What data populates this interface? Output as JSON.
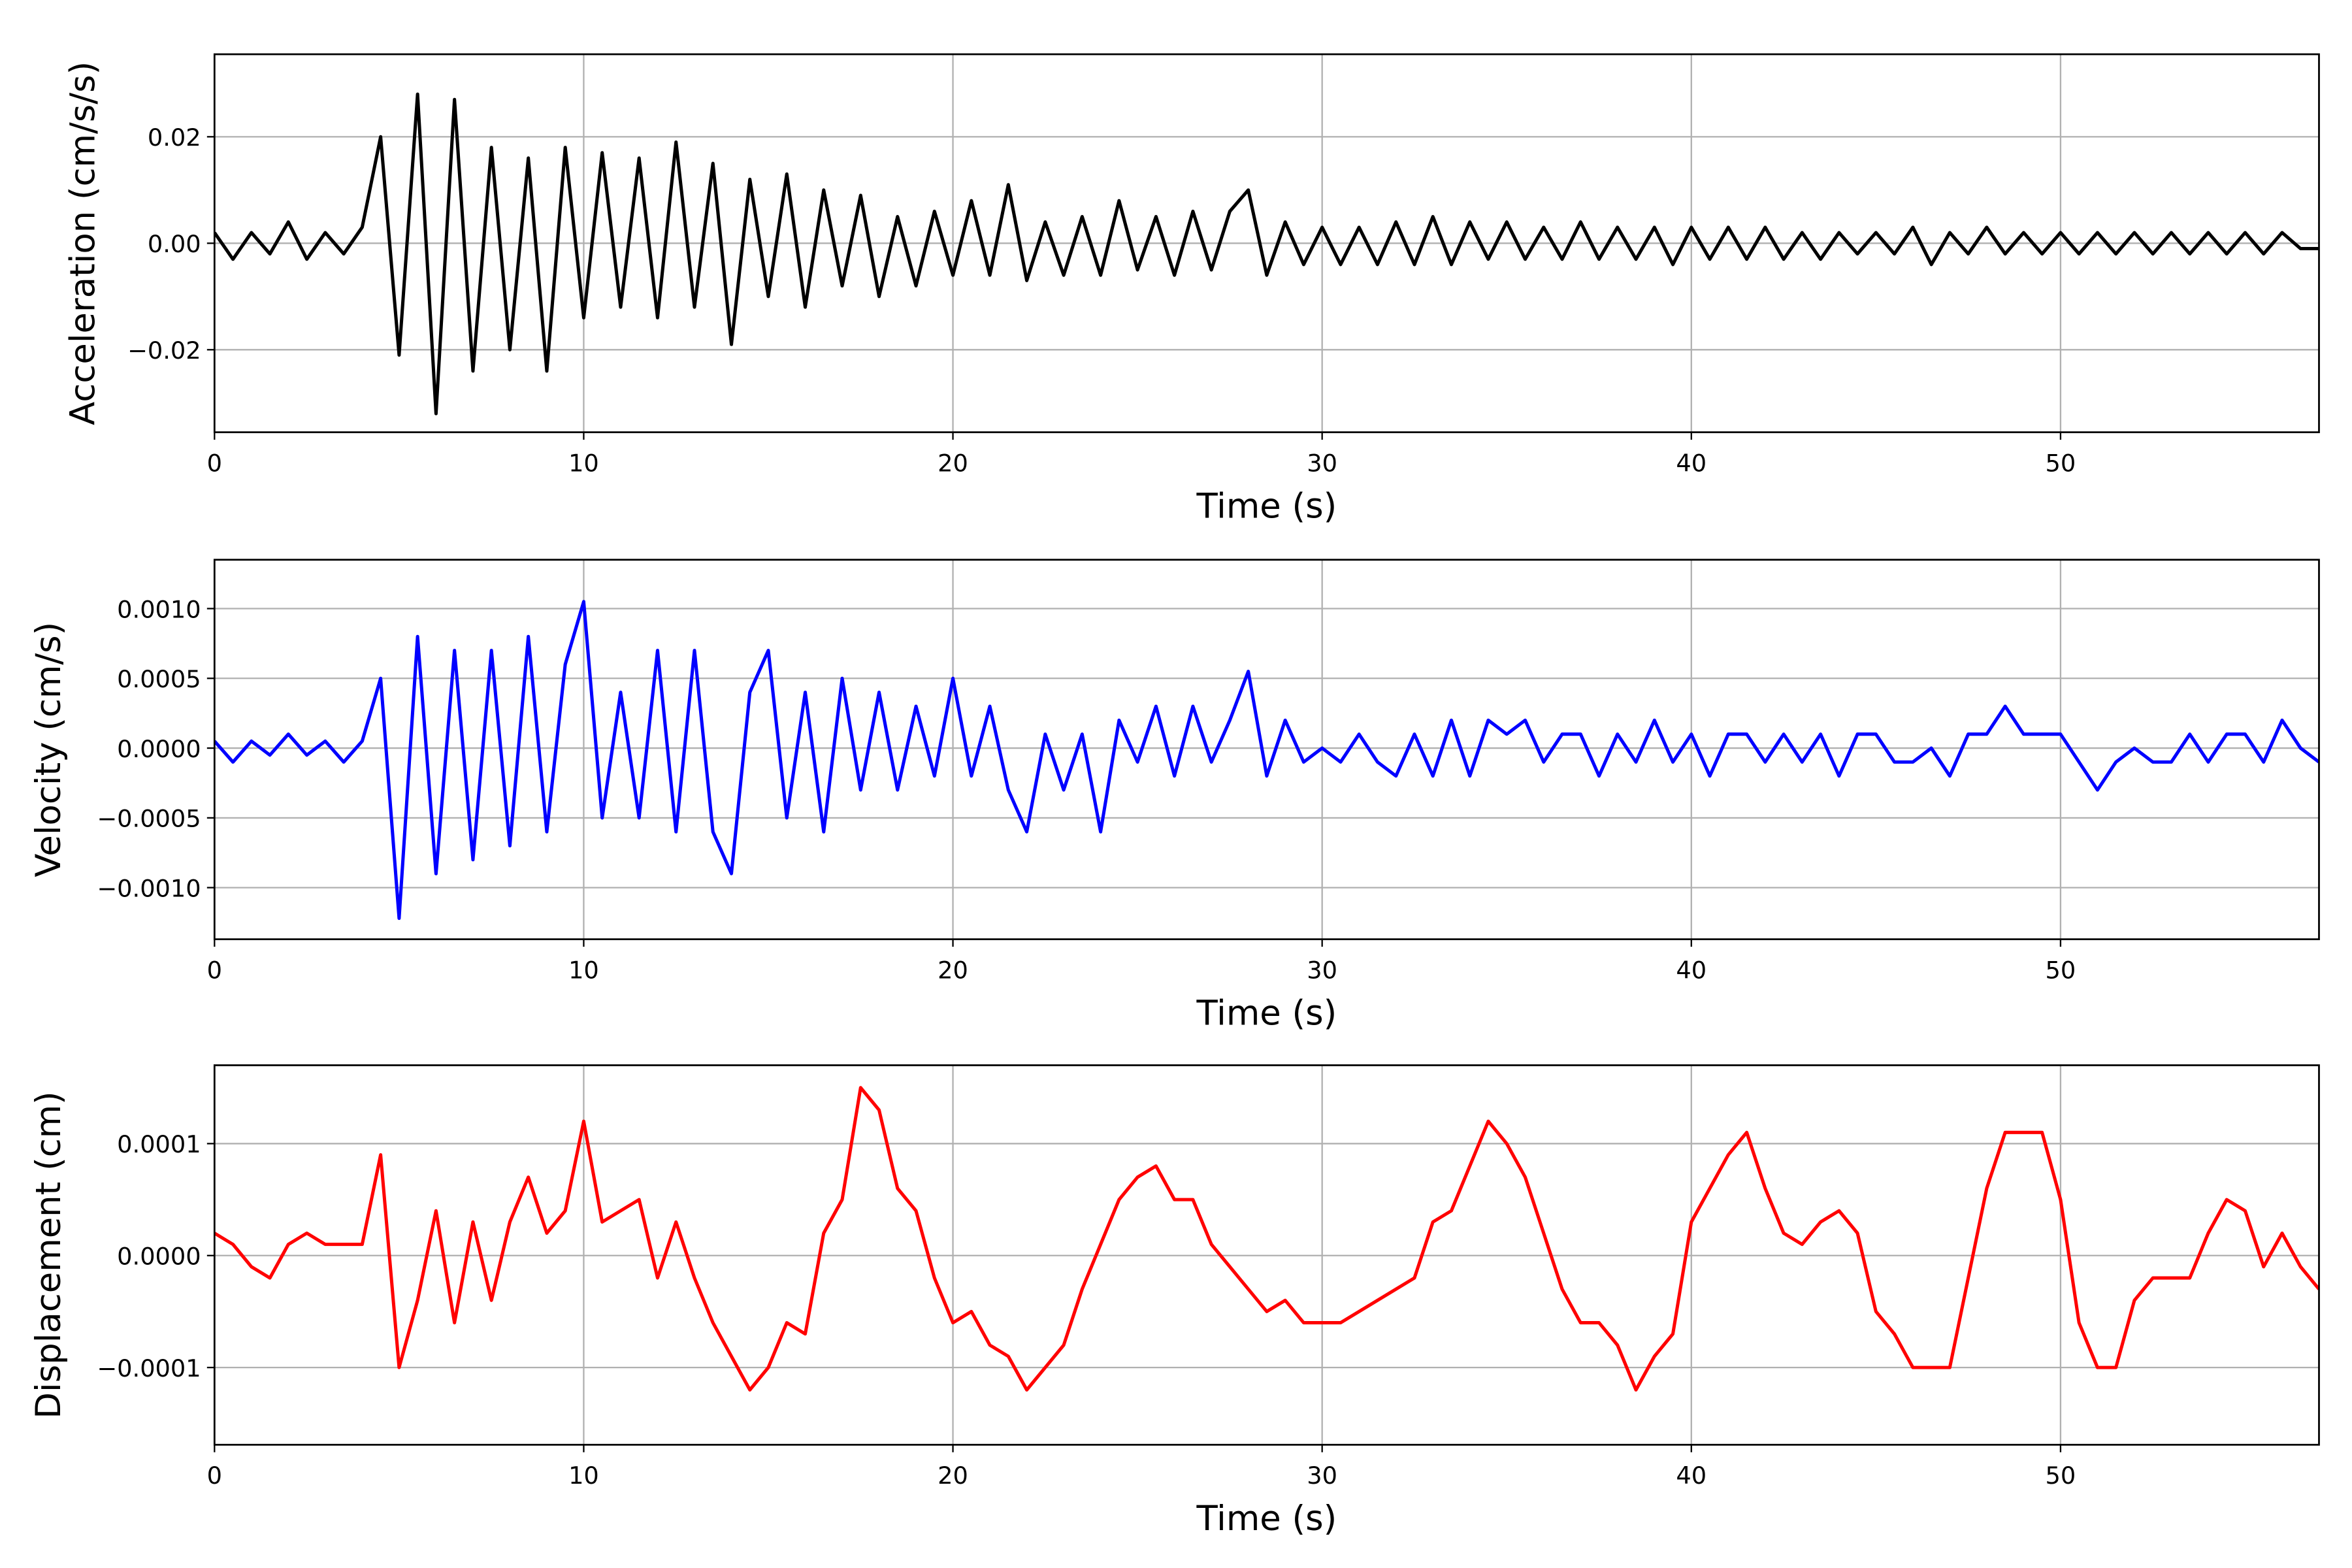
{
  "chart_data": [
    {
      "type": "line",
      "xlabel": "Time (s)",
      "ylabel": "Acceleration (cm/s/s)",
      "grid": true,
      "xlim": [
        0,
        57
      ],
      "xticks": [
        0,
        10,
        20,
        30,
        40,
        50
      ],
      "ylim": [
        -0.0355,
        0.0355
      ],
      "yticks": [
        {
          "value": -0.02,
          "label": "−0.02"
        },
        {
          "value": 0,
          "label": "0.00"
        },
        {
          "value": 0.02,
          "label": "0.02"
        }
      ],
      "x": [
        0,
        0.5,
        1,
        1.5,
        2,
        2.5,
        3,
        3.5,
        4,
        4.5,
        5,
        5.5,
        6,
        6.5,
        7,
        7.5,
        8,
        8.5,
        9,
        9.5,
        10,
        10.5,
        11,
        11.5,
        12,
        12.5,
        13,
        13.5,
        14,
        14.5,
        15,
        15.5,
        16,
        16.5,
        17,
        17.5,
        18,
        18.5,
        19,
        19.5,
        20,
        20.5,
        21,
        21.5,
        22,
        22.5,
        23,
        23.5,
        24,
        24.5,
        25,
        25.5,
        26,
        26.5,
        27,
        27.5,
        28,
        28.5,
        29,
        29.5,
        30,
        30.5,
        31,
        31.5,
        32,
        32.5,
        33,
        33.5,
        34,
        34.5,
        35,
        35.5,
        36,
        36.5,
        37,
        37.5,
        38,
        38.5,
        39,
        39.5,
        40,
        40.5,
        41,
        41.5,
        42,
        42.5,
        43,
        43.5,
        44,
        44.5,
        45,
        45.5,
        46,
        46.5,
        47,
        47.5,
        48,
        48.5,
        49,
        49.5,
        50,
        50.5,
        51,
        51.5,
        52,
        52.5,
        53,
        53.5,
        54,
        54.5,
        55,
        55.5,
        56,
        56.5,
        57
      ],
      "series": [
        {
          "color": "#000000",
          "values": [
            0.002,
            -0.003,
            0.002,
            -0.002,
            0.004,
            -0.003,
            0.002,
            -0.002,
            0.003,
            0.02,
            -0.021,
            0.028,
            -0.032,
            0.027,
            -0.024,
            0.018,
            -0.02,
            0.016,
            -0.024,
            0.018,
            -0.014,
            0.017,
            -0.012,
            0.016,
            -0.014,
            0.019,
            -0.012,
            0.015,
            -0.019,
            0.012,
            -0.01,
            0.013,
            -0.012,
            0.01,
            -0.008,
            0.009,
            -0.01,
            0.005,
            -0.008,
            0.006,
            -0.006,
            0.008,
            -0.006,
            0.011,
            -0.007,
            0.004,
            -0.006,
            0.005,
            -0.006,
            0.008,
            -0.005,
            0.005,
            -0.006,
            0.006,
            -0.005,
            0.006,
            0.01,
            -0.006,
            0.004,
            -0.004,
            0.003,
            -0.004,
            0.003,
            -0.004,
            0.004,
            -0.004,
            0.005,
            -0.004,
            0.004,
            -0.003,
            0.004,
            -0.003,
            0.003,
            -0.003,
            0.004,
            -0.003,
            0.003,
            -0.003,
            0.003,
            -0.004,
            0.003,
            -0.003,
            0.003,
            -0.003,
            0.003,
            -0.003,
            0.002,
            -0.003,
            0.002,
            -0.002,
            0.002,
            -0.002,
            0.003,
            -0.004,
            0.002,
            -0.002,
            0.003,
            -0.002,
            0.002,
            -0.002,
            0.002,
            -0.002,
            0.002,
            -0.002,
            0.002,
            -0.002,
            0.002,
            -0.002,
            0.002,
            -0.002,
            0.002,
            -0.002,
            0.002,
            -0.001,
            -0.001
          ]
        }
      ]
    },
    {
      "type": "line",
      "xlabel": "Time (s)",
      "ylabel": "Velocity (cm/s)",
      "grid": true,
      "xlim": [
        0,
        57
      ],
      "xticks": [
        0,
        10,
        20,
        30,
        40,
        50
      ],
      "ylim": [
        -0.00137,
        0.00135
      ],
      "yticks": [
        {
          "value": -0.001,
          "label": "−0.0010"
        },
        {
          "value": -0.0005,
          "label": "−0.0005"
        },
        {
          "value": 0,
          "label": "0.0000"
        },
        {
          "value": 0.0005,
          "label": "0.0005"
        },
        {
          "value": 0.001,
          "label": "0.0010"
        }
      ],
      "x": [
        0,
        0.5,
        1,
        1.5,
        2,
        2.5,
        3,
        3.5,
        4,
        4.5,
        5,
        5.5,
        6,
        6.5,
        7,
        7.5,
        8,
        8.5,
        9,
        9.5,
        10,
        10.5,
        11,
        11.5,
        12,
        12.5,
        13,
        13.5,
        14,
        14.5,
        15,
        15.5,
        16,
        16.5,
        17,
        17.5,
        18,
        18.5,
        19,
        19.5,
        20,
        20.5,
        21,
        21.5,
        22,
        22.5,
        23,
        23.5,
        24,
        24.5,
        25,
        25.5,
        26,
        26.5,
        27,
        27.5,
        28,
        28.5,
        29,
        29.5,
        30,
        30.5,
        31,
        31.5,
        32,
        32.5,
        33,
        33.5,
        34,
        34.5,
        35,
        35.5,
        36,
        36.5,
        37,
        37.5,
        38,
        38.5,
        39,
        39.5,
        40,
        40.5,
        41,
        41.5,
        42,
        42.5,
        43,
        43.5,
        44,
        44.5,
        45,
        45.5,
        46,
        46.5,
        47,
        47.5,
        48,
        48.5,
        49,
        49.5,
        50,
        50.5,
        51,
        51.5,
        52,
        52.5,
        53,
        53.5,
        54,
        54.5,
        55,
        55.5,
        56,
        56.5,
        57
      ],
      "series": [
        {
          "color": "#0000ff",
          "values": [
            5e-05,
            -0.0001,
            5e-05,
            -5e-05,
            0.0001,
            -5e-05,
            5e-05,
            -0.0001,
            5e-05,
            0.0005,
            -0.00122,
            0.0008,
            -0.0009,
            0.0007,
            -0.0008,
            0.0007,
            -0.0007,
            0.0008,
            -0.0006,
            0.0006,
            0.00105,
            -0.0005,
            0.0004,
            -0.0005,
            0.0007,
            -0.0006,
            0.0007,
            -0.0006,
            -0.0009,
            0.0004,
            0.0007,
            -0.0005,
            0.0004,
            -0.0006,
            0.0005,
            -0.0003,
            0.0004,
            -0.0003,
            0.0003,
            -0.0002,
            0.0005,
            -0.0002,
            0.0003,
            -0.0003,
            -0.0006,
            0.0001,
            -0.0003,
            0.0001,
            -0.0006,
            0.0002,
            -0.0001,
            0.0003,
            -0.0002,
            0.0003,
            -0.0001,
            0.0002,
            0.00055,
            -0.0002,
            0.0002,
            -0.0001,
            0,
            -0.0001,
            0.0001,
            -0.0001,
            -0.0002,
            0.0001,
            -0.0002,
            0.0002,
            -0.0002,
            0.0002,
            0.0001,
            0.0002,
            -0.0001,
            0.0001,
            0.0001,
            -0.0002,
            0.0001,
            -0.0001,
            0.0002,
            -0.0001,
            0.0001,
            -0.0002,
            0.0001,
            0.0001,
            -0.0001,
            0.0001,
            -0.0001,
            0.0001,
            -0.0002,
            0.0001,
            0.0001,
            -0.0001,
            -0.0001,
            0,
            -0.0002,
            0.0001,
            0.0001,
            0.0003,
            0.0001,
            0.0001,
            0.0001,
            -0.0001,
            -0.0003,
            -0.0001,
            0,
            -0.0001,
            -0.0001,
            0.0001,
            -0.0001,
            0.0001,
            0.0001,
            -0.0001,
            0.0002,
            0,
            -0.0001
          ]
        }
      ]
    },
    {
      "type": "line",
      "xlabel": "Time (s)",
      "ylabel": "Displacement (cm)",
      "grid": true,
      "xlim": [
        0,
        57
      ],
      "xticks": [
        0,
        10,
        20,
        30,
        40,
        50
      ],
      "ylim": [
        -0.000169,
        0.00017
      ],
      "yticks": [
        {
          "value": -0.0001,
          "label": "−0.0001"
        },
        {
          "value": 0,
          "label": "0.0000"
        },
        {
          "value": 0.0001,
          "label": "0.0001"
        }
      ],
      "x": [
        0,
        0.5,
        1,
        1.5,
        2,
        2.5,
        3,
        3.5,
        4,
        4.5,
        5,
        5.5,
        6,
        6.5,
        7,
        7.5,
        8,
        8.5,
        9,
        9.5,
        10,
        10.5,
        11,
        11.5,
        12,
        12.5,
        13,
        13.5,
        14,
        14.5,
        15,
        15.5,
        16,
        16.5,
        17,
        17.5,
        18,
        18.5,
        19,
        19.5,
        20,
        20.5,
        21,
        21.5,
        22,
        22.5,
        23,
        23.5,
        24,
        24.5,
        25,
        25.5,
        26,
        26.5,
        27,
        27.5,
        28,
        28.5,
        29,
        29.5,
        30,
        30.5,
        31,
        31.5,
        32,
        32.5,
        33,
        33.5,
        34,
        34.5,
        35,
        35.5,
        36,
        36.5,
        37,
        37.5,
        38,
        38.5,
        39,
        39.5,
        40,
        40.5,
        41,
        41.5,
        42,
        42.5,
        43,
        43.5,
        44,
        44.5,
        45,
        45.5,
        46,
        46.5,
        47,
        47.5,
        48,
        48.5,
        49,
        49.5,
        50,
        50.5,
        51,
        51.5,
        52,
        52.5,
        53,
        53.5,
        54,
        54.5,
        55,
        55.5,
        56,
        56.5,
        57
      ],
      "series": [
        {
          "color": "#ff0000",
          "values": [
            2e-05,
            1e-05,
            -1e-05,
            -2e-05,
            1e-05,
            2e-05,
            1e-05,
            1e-05,
            1e-05,
            9e-05,
            -0.0001,
            -4e-05,
            4e-05,
            -6e-05,
            3e-05,
            -4e-05,
            3e-05,
            7e-05,
            2e-05,
            4e-05,
            0.00012,
            3e-05,
            4e-05,
            5e-05,
            -2e-05,
            3e-05,
            -2e-05,
            -6e-05,
            -9e-05,
            -0.00012,
            -0.0001,
            -6e-05,
            -7e-05,
            2e-05,
            5e-05,
            0.00015,
            0.00013,
            6e-05,
            4e-05,
            -2e-05,
            -6e-05,
            -5e-05,
            -8e-05,
            -9e-05,
            -0.00012,
            -0.0001,
            -8e-05,
            -3e-05,
            1e-05,
            5e-05,
            7e-05,
            8e-05,
            5e-05,
            5e-05,
            1e-05,
            -1e-05,
            -3e-05,
            -5e-05,
            -4e-05,
            -6e-05,
            -6e-05,
            -6e-05,
            -5e-05,
            -4e-05,
            -3e-05,
            -2e-05,
            3e-05,
            4e-05,
            8e-05,
            0.00012,
            0.0001,
            7e-05,
            2e-05,
            -3e-05,
            -6e-05,
            -6e-05,
            -8e-05,
            -0.00012,
            -9e-05,
            -7e-05,
            3e-05,
            6e-05,
            9e-05,
            0.00011,
            6e-05,
            2e-05,
            1e-05,
            3e-05,
            4e-05,
            2e-05,
            -5e-05,
            -7e-05,
            -0.0001,
            -0.0001,
            -0.0001,
            -2e-05,
            6e-05,
            0.00011,
            0.00011,
            0.00011,
            5e-05,
            -6e-05,
            -0.0001,
            -0.0001,
            -4e-05,
            -2e-05,
            -2e-05,
            -2e-05,
            2e-05,
            5e-05,
            4e-05,
            -1e-05,
            2e-05,
            -1e-05,
            -3e-05
          ]
        }
      ]
    }
  ]
}
